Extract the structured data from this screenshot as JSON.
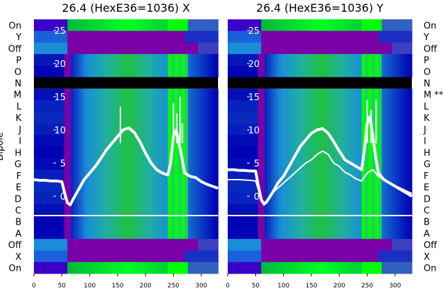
{
  "figure": {
    "ylabel_left": "Dipole",
    "left_row_labels": [
      "On",
      "Y",
      "Off",
      "P",
      "O",
      "N",
      "M",
      "L",
      "K",
      "J",
      "I",
      "H",
      "G",
      "F",
      "E",
      "D",
      "C",
      "B",
      "A",
      "Off",
      "X",
      "On"
    ],
    "right_row_labels": [
      "On",
      "Y",
      "Off",
      "P",
      "O",
      "N",
      "M **",
      "L",
      "K",
      "J",
      "I",
      "H",
      "G",
      "F",
      "E",
      "D",
      "C",
      "B",
      "A",
      "Off",
      "X",
      "On"
    ]
  },
  "chart_data": [
    {
      "type": "heatmap",
      "title": "26.4 (HexE36=1036) X",
      "xlim": [
        0,
        330
      ],
      "xticks": [
        0,
        50,
        100,
        150,
        200,
        250,
        300
      ],
      "ylim": [
        -5,
        28
      ],
      "yticks": [
        0,
        5,
        10,
        15,
        20,
        25
      ],
      "rows": [
        "On",
        "Y",
        "Off",
        "P",
        "O",
        "N",
        "M",
        "L",
        "K",
        "J",
        "I",
        "H",
        "G",
        "F",
        "E",
        "D",
        "C",
        "B",
        "A",
        "Off",
        "X",
        "On"
      ],
      "masked_row": "N",
      "colorscale": [
        "#0000b4",
        "#1a8cd8",
        "#20b0a0",
        "#20c040",
        "#00ff00",
        "#7a00a8"
      ],
      "series": [
        {
          "x": [
            0,
            10,
            20,
            30,
            40,
            50,
            55,
            60,
            65,
            70,
            80,
            90,
            100,
            110,
            120,
            130,
            140,
            150,
            160,
            170,
            180,
            190,
            200,
            210,
            220,
            230,
            240,
            245,
            250,
            255,
            260,
            265,
            270,
            280,
            290,
            300,
            310,
            320,
            330
          ],
          "y": [
            2.5,
            2.4,
            2.4,
            2.3,
            2.3,
            2.2,
            0.5,
            -1,
            -1.3,
            -0.5,
            1,
            2.5,
            3.5,
            4.5,
            5.7,
            7,
            8,
            9,
            10,
            10.3,
            9.6,
            8.2,
            6.5,
            5,
            4,
            3.5,
            3.2,
            5,
            9,
            10,
            8,
            6,
            3.5,
            3,
            2.8,
            2.2,
            1.8,
            1.5,
            1.2
          ]
        }
      ],
      "spikes": [
        {
          "x": 155,
          "y": 13.5
        },
        {
          "x": 250,
          "y": 14
        },
        {
          "x": 256,
          "y": 12.5
        },
        {
          "x": 262,
          "y": 15
        },
        {
          "x": 266,
          "y": 11
        }
      ],
      "hline_y": -4.5
    },
    {
      "type": "heatmap",
      "title": "26.4 (HexE36=1036) Y",
      "xlim": [
        0,
        330
      ],
      "xticks": [
        0,
        50,
        100,
        150,
        200,
        250,
        300
      ],
      "ylim": [
        -5,
        28
      ],
      "yticks": [
        0,
        5,
        10,
        15,
        20,
        25
      ],
      "rows": [
        "On",
        "Y",
        "Off",
        "P",
        "O",
        "N",
        "M **",
        "L",
        "K",
        "J",
        "I",
        "H",
        "G",
        "F",
        "E",
        "D",
        "C",
        "B",
        "A",
        "Off",
        "X",
        "On"
      ],
      "masked_row": "N",
      "colorscale": [
        "#0000b4",
        "#1a8cd8",
        "#20b0a0",
        "#20c040",
        "#00ff00",
        "#7a00a8"
      ],
      "series": [
        {
          "x": [
            0,
            10,
            20,
            30,
            40,
            50,
            55,
            60,
            65,
            70,
            80,
            90,
            100,
            110,
            120,
            130,
            140,
            150,
            160,
            170,
            180,
            190,
            200,
            210,
            220,
            230,
            240,
            245,
            250,
            255,
            260,
            265,
            270,
            280,
            290,
            300,
            310,
            320,
            330
          ],
          "y": [
            4,
            4,
            3.9,
            3.9,
            3.8,
            3.8,
            1.5,
            -0.5,
            -1.2,
            -0.8,
            0.5,
            2,
            3,
            4.5,
            6,
            7.5,
            8.5,
            9.5,
            10,
            10.2,
            9.5,
            8.2,
            6.8,
            5.5,
            5,
            4.5,
            4,
            7,
            11,
            12,
            9,
            6,
            3.5,
            2.5,
            2,
            1.5,
            1,
            0.5,
            0
          ]
        },
        {
          "x": [
            0,
            20,
            40,
            50,
            55,
            60,
            65,
            70,
            80,
            100,
            120,
            140,
            150,
            160,
            170,
            180,
            190,
            200,
            210,
            220,
            230,
            240,
            250,
            260,
            270,
            280,
            290,
            300,
            310,
            320,
            330
          ],
          "y": [
            2.5,
            2.5,
            2.4,
            2.3,
            1,
            -0.5,
            -1.3,
            -1,
            0.5,
            2,
            3.5,
            5,
            5.5,
            6.3,
            6.8,
            6.3,
            5,
            4.5,
            3.6,
            3.2,
            2.6,
            2.3,
            3.5,
            4,
            3,
            2.5,
            2,
            1.6,
            1.2,
            0.8,
            0.4
          ]
        }
      ],
      "spikes": [
        {
          "x": 250,
          "y": 14.5
        },
        {
          "x": 257,
          "y": 13
        },
        {
          "x": 266,
          "y": 14.5
        }
      ],
      "hline_y": -4.5
    }
  ]
}
